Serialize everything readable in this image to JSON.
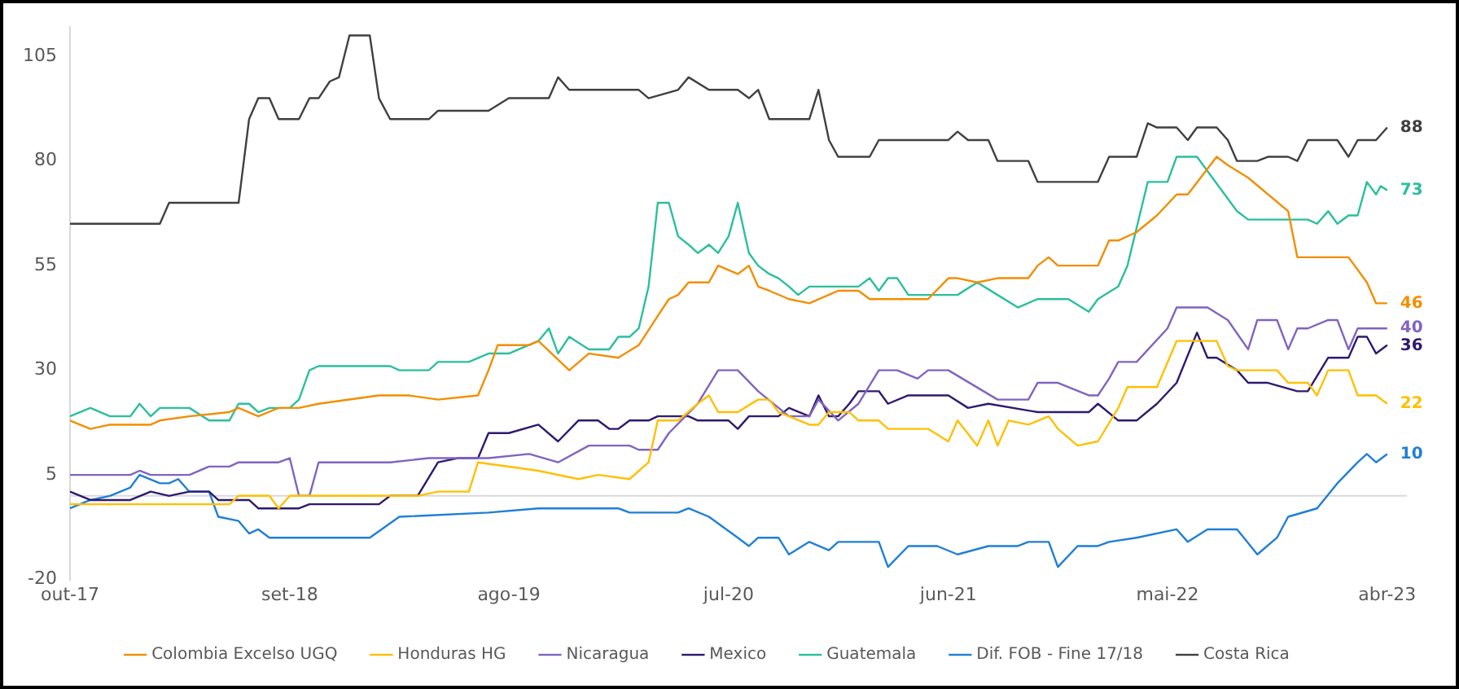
{
  "chart_data": {
    "type": "line",
    "xlim": [
      "2017-10",
      "2023-05"
    ],
    "xticks": [
      {
        "value": "2017-10",
        "label": "out-17"
      },
      {
        "value": "2018-09",
        "label": "set-18"
      },
      {
        "value": "2019-08",
        "label": "ago-19"
      },
      {
        "value": "2020-07",
        "label": "jul-20"
      },
      {
        "value": "2021-06",
        "label": "jun-21"
      },
      {
        "value": "2022-05",
        "label": "mai-22"
      },
      {
        "value": "2023-04",
        "label": "abr-23"
      }
    ],
    "ylim": [
      -20,
      112
    ],
    "yticks": [
      -20,
      5,
      30,
      55,
      80,
      105
    ],
    "grid": false,
    "legend": "bottom",
    "marker": "none",
    "line_style": "solid",
    "ref_lines": [
      {
        "axis": "y",
        "value": 0,
        "color": "#d9d9d9"
      }
    ],
    "series": [
      {
        "name": "Colombia Excelso UGQ",
        "color": "#f28e00",
        "x": [
          "2017-10-01",
          "2017-11-01",
          "2017-12-01",
          "2018-02-01",
          "2018-02-15",
          "2018-04-01",
          "2018-06-01",
          "2018-06-15",
          "2018-07-15",
          "2018-08-15",
          "2018-09-15",
          "2018-10-15",
          "2019-01-15",
          "2019-03-01",
          "2019-04-15",
          "2019-06-15",
          "2019-07-01",
          "2019-07-15",
          "2019-09-01",
          "2019-09-15",
          "2019-11-01",
          "2019-12-01",
          "2020-01-15",
          "2020-02-15",
          "2020-03-15",
          "2020-04-01",
          "2020-04-15",
          "2020-05-01",
          "2020-06-01",
          "2020-06-15",
          "2020-07-15",
          "2020-08-01",
          "2020-08-15",
          "2020-09-01",
          "2020-10-01",
          "2020-11-01",
          "2020-12-15",
          "2021-01-15",
          "2021-02-01",
          "2021-05-01",
          "2021-06-01",
          "2021-06-15",
          "2021-07-15",
          "2021-08-15",
          "2021-10-01",
          "2021-10-15",
          "2021-11-01",
          "2021-11-15",
          "2022-01-15",
          "2022-02-01",
          "2022-02-15",
          "2022-03-15",
          "2022-04-15",
          "2022-05-15",
          "2022-06-01",
          "2022-07-15",
          "2022-08-01",
          "2022-09-01",
          "2022-11-01",
          "2022-11-15",
          "2023-02-01",
          "2023-03-01",
          "2023-03-15",
          "2023-04-01"
        ],
        "values": [
          18,
          16,
          17,
          17,
          18,
          19,
          20,
          21,
          19,
          21,
          21,
          22,
          24,
          24,
          23,
          24,
          30,
          36,
          36,
          37,
          30,
          34,
          33,
          36,
          43,
          47,
          48,
          51,
          51,
          55,
          53,
          55,
          50,
          49,
          47,
          46,
          49,
          49,
          47,
          47,
          52,
          52,
          51,
          52,
          52,
          55,
          57,
          55,
          55,
          61,
          61,
          63,
          67,
          72,
          72,
          81,
          79,
          76,
          68,
          57,
          57,
          51,
          46,
          46
        ],
        "value_labels": [
          null,
          null,
          null,
          null,
          null,
          null,
          null,
          null,
          null,
          null,
          null,
          null,
          null,
          null,
          null,
          null,
          null,
          null,
          null,
          null,
          null,
          null,
          null,
          null,
          null,
          null,
          null,
          null,
          null,
          null,
          null,
          null,
          null,
          null,
          null,
          null,
          null,
          null,
          null,
          null,
          null,
          null,
          null,
          null,
          null,
          null,
          null,
          null,
          null,
          null,
          null,
          null,
          null,
          null,
          null,
          null,
          null,
          null,
          null,
          null,
          null,
          null,
          null,
          "46"
        ]
      },
      {
        "name": "Honduras HG",
        "color": "#ffc000",
        "x": [
          "2017-10-01",
          "2018-06-01",
          "2018-06-15",
          "2018-08-01",
          "2018-08-15",
          "2018-09-01",
          "2019-03-15",
          "2019-04-15",
          "2019-06-01",
          "2019-06-15",
          "2019-09-15",
          "2019-11-15",
          "2019-12-15",
          "2020-02-01",
          "2020-03-01",
          "2020-03-15",
          "2020-04-15",
          "2020-05-15",
          "2020-06-01",
          "2020-06-15",
          "2020-07-15",
          "2020-08-15",
          "2020-09-01",
          "2020-09-15",
          "2020-11-01",
          "2020-11-15",
          "2020-12-01",
          "2021-01-01",
          "2021-01-15",
          "2021-02-15",
          "2021-03-01",
          "2021-05-01",
          "2021-06-01",
          "2021-06-15",
          "2021-07-15",
          "2021-08-01",
          "2021-08-15",
          "2021-09-01",
          "2021-10-01",
          "2021-11-01",
          "2021-11-15",
          "2021-12-15",
          "2022-01-15",
          "2022-02-15",
          "2022-03-01",
          "2022-04-15",
          "2022-05-15",
          "2022-07-15",
          "2022-08-01",
          "2022-08-15",
          "2022-10-15",
          "2022-11-01",
          "2022-12-01",
          "2022-12-15",
          "2023-01-01",
          "2023-02-01",
          "2023-02-15",
          "2023-03-15",
          "2023-04-01"
        ],
        "values": [
          -2,
          -2,
          0,
          0,
          -3,
          0,
          0,
          1,
          1,
          8,
          6,
          4,
          5,
          4,
          8,
          18,
          18,
          22,
          24,
          20,
          20,
          23,
          23,
          20,
          17,
          17,
          20,
          20,
          18,
          18,
          16,
          16,
          13,
          18,
          12,
          18,
          12,
          18,
          17,
          19,
          16,
          12,
          13,
          21,
          26,
          26,
          37,
          37,
          31,
          30,
          30,
          27,
          27,
          24,
          30,
          30,
          24,
          24,
          22
        ],
        "value_labels": [
          null,
          null,
          null,
          null,
          null,
          null,
          null,
          null,
          null,
          null,
          null,
          null,
          null,
          null,
          null,
          null,
          null,
          null,
          null,
          null,
          null,
          null,
          null,
          null,
          null,
          null,
          null,
          null,
          null,
          null,
          null,
          null,
          null,
          null,
          null,
          null,
          null,
          null,
          null,
          null,
          null,
          null,
          null,
          null,
          null,
          null,
          null,
          null,
          null,
          null,
          null,
          null,
          null,
          null,
          null,
          null,
          null,
          null,
          "22"
        ]
      },
      {
        "name": "Nicaragua",
        "color": "#8064c0",
        "x": [
          "2017-10-01",
          "2018-01-01",
          "2018-01-15",
          "2018-02-01",
          "2018-04-01",
          "2018-05-01",
          "2018-06-01",
          "2018-06-15",
          "2018-08-15",
          "2018-09-01",
          "2018-09-15",
          "2018-10-01",
          "2018-10-15",
          "2019-02-01",
          "2019-04-01",
          "2019-07-01",
          "2019-09-01",
          "2019-10-15",
          "2019-12-01",
          "2020-02-01",
          "2020-02-15",
          "2020-03-15",
          "2020-04-01",
          "2020-05-15",
          "2020-06-15",
          "2020-07-15",
          "2020-08-15",
          "2020-10-01",
          "2020-11-01",
          "2020-11-15",
          "2020-12-15",
          "2021-01-15",
          "2021-02-15",
          "2021-03-15",
          "2021-04-15",
          "2021-05-01",
          "2021-06-01",
          "2021-08-15",
          "2021-10-01",
          "2021-10-15",
          "2021-11-15",
          "2022-01-01",
          "2022-01-15",
          "2022-02-01",
          "2022-02-15",
          "2022-03-15",
          "2022-05-01",
          "2022-05-15",
          "2022-07-01",
          "2022-08-01",
          "2022-09-01",
          "2022-09-15",
          "2022-10-15",
          "2022-11-01",
          "2022-11-15",
          "2022-12-01",
          "2023-01-01",
          "2023-01-15",
          "2023-02-01",
          "2023-02-15",
          "2023-04-01"
        ],
        "values": [
          5,
          5,
          6,
          5,
          5,
          7,
          7,
          8,
          8,
          9,
          0,
          0,
          8,
          8,
          9,
          9,
          10,
          8,
          12,
          12,
          11,
          11,
          15,
          22,
          30,
          30,
          25,
          19,
          19,
          23,
          18,
          22,
          30,
          30,
          28,
          30,
          30,
          23,
          23,
          27,
          27,
          24,
          24,
          28,
          32,
          32,
          40,
          45,
          45,
          42,
          35,
          42,
          42,
          35,
          40,
          40,
          42,
          42,
          35,
          40,
          40
        ],
        "value_labels": [
          null,
          null,
          null,
          null,
          null,
          null,
          null,
          null,
          null,
          null,
          null,
          null,
          null,
          null,
          null,
          null,
          null,
          null,
          null,
          null,
          null,
          null,
          null,
          null,
          null,
          null,
          null,
          null,
          null,
          null,
          null,
          null,
          null,
          null,
          null,
          null,
          null,
          null,
          null,
          null,
          null,
          null,
          null,
          null,
          null,
          null,
          null,
          null,
          null,
          null,
          null,
          null,
          null,
          null,
          null,
          null,
          null,
          null,
          null,
          null,
          "40"
        ]
      },
      {
        "name": "Mexico",
        "color": "#2e1a6e",
        "x": [
          "2017-10-01",
          "2017-11-01",
          "2018-01-01",
          "2018-02-01",
          "2018-03-01",
          "2018-04-01",
          "2018-05-01",
          "2018-05-15",
          "2018-07-01",
          "2018-07-15",
          "2018-09-15",
          "2018-10-01",
          "2019-01-15",
          "2019-02-01",
          "2019-03-15",
          "2019-04-15",
          "2019-05-15",
          "2019-06-15",
          "2019-07-01",
          "2019-08-01",
          "2019-09-15",
          "2019-10-15",
          "2019-11-15",
          "2019-12-15",
          "2020-01-01",
          "2020-01-15",
          "2020-02-01",
          "2020-03-01",
          "2020-03-15",
          "2020-05-01",
          "2020-05-15",
          "2020-07-01",
          "2020-07-15",
          "2020-08-01",
          "2020-09-15",
          "2020-10-01",
          "2020-11-01",
          "2020-11-15",
          "2020-12-01",
          "2020-12-15",
          "2021-01-01",
          "2021-01-15",
          "2021-02-15",
          "2021-03-01",
          "2021-04-01",
          "2021-06-01",
          "2021-07-01",
          "2021-08-01",
          "2021-10-15",
          "2021-11-15",
          "2022-01-01",
          "2022-01-15",
          "2022-02-15",
          "2022-03-15",
          "2022-04-15",
          "2022-05-15",
          "2022-06-15",
          "2022-07-01",
          "2022-07-15",
          "2022-08-15",
          "2022-09-01",
          "2022-10-01",
          "2022-11-15",
          "2022-12-01",
          "2023-01-01",
          "2023-02-01",
          "2023-02-15",
          "2023-03-01",
          "2023-03-15",
          "2023-04-01"
        ],
        "values": [
          1,
          -1,
          -1,
          1,
          0,
          1,
          1,
          -1,
          -1,
          -3,
          -3,
          -2,
          -2,
          0,
          0,
          8,
          9,
          9,
          15,
          15,
          17,
          13,
          18,
          18,
          16,
          16,
          18,
          18,
          19,
          19,
          18,
          18,
          16,
          19,
          19,
          21,
          19,
          24,
          19,
          19,
          22,
          25,
          25,
          22,
          24,
          24,
          21,
          22,
          20,
          20,
          20,
          22,
          18,
          18,
          22,
          27,
          39,
          33,
          33,
          30,
          27,
          27,
          25,
          25,
          33,
          33,
          38,
          38,
          34,
          36
        ],
        "value_labels": [
          null,
          null,
          null,
          null,
          null,
          null,
          null,
          null,
          null,
          null,
          null,
          null,
          null,
          null,
          null,
          null,
          null,
          null,
          null,
          null,
          null,
          null,
          null,
          null,
          null,
          null,
          null,
          null,
          null,
          null,
          null,
          null,
          null,
          null,
          null,
          null,
          null,
          null,
          null,
          null,
          null,
          null,
          null,
          null,
          null,
          null,
          null,
          null,
          null,
          null,
          null,
          null,
          null,
          null,
          null,
          null,
          null,
          null,
          null,
          null,
          null,
          null,
          null,
          null,
          null,
          null,
          null,
          null,
          null,
          "36"
        ]
      },
      {
        "name": "Guatemala",
        "color": "#2bbf9c",
        "x": [
          "2017-10-01",
          "2017-11-01",
          "2017-12-01",
          "2018-01-01",
          "2018-01-15",
          "2018-02-01",
          "2018-02-15",
          "2018-04-01",
          "2018-05-01",
          "2018-06-01",
          "2018-06-15",
          "2018-07-01",
          "2018-07-15",
          "2018-08-01",
          "2018-09-01",
          "2018-09-15",
          "2018-10-01",
          "2018-10-15",
          "2019-02-01",
          "2019-02-15",
          "2019-04-01",
          "2019-04-15",
          "2019-06-01",
          "2019-07-01",
          "2019-08-01",
          "2019-09-15",
          "2019-10-01",
          "2019-10-15",
          "2019-11-01",
          "2019-12-01",
          "2020-01-01",
          "2020-01-15",
          "2020-02-01",
          "2020-02-15",
          "2020-03-01",
          "2020-03-15",
          "2020-04-01",
          "2020-04-15",
          "2020-05-01",
          "2020-05-15",
          "2020-06-01",
          "2020-06-15",
          "2020-07-01",
          "2020-07-15",
          "2020-08-01",
          "2020-08-15",
          "2020-09-01",
          "2020-09-15",
          "2020-10-01",
          "2020-10-15",
          "2020-11-01",
          "2021-01-15",
          "2021-02-01",
          "2021-02-15",
          "2021-03-01",
          "2021-03-15",
          "2021-04-01",
          "2021-06-15",
          "2021-07-15",
          "2021-08-15",
          "2021-09-15",
          "2021-10-15",
          "2021-12-01",
          "2022-01-01",
          "2022-01-15",
          "2022-02-15",
          "2022-03-01",
          "2022-04-01",
          "2022-05-01",
          "2022-05-15",
          "2022-06-15",
          "2022-08-15",
          "2022-09-01",
          "2022-12-01",
          "2022-12-15",
          "2023-01-01",
          "2023-01-15",
          "2023-02-01",
          "2023-02-15",
          "2023-03-01",
          "2023-03-15",
          "2023-03-22",
          "2023-04-01"
        ],
        "values": [
          19,
          21,
          19,
          19,
          22,
          19,
          21,
          21,
          18,
          18,
          22,
          22,
          20,
          21,
          21,
          23,
          30,
          31,
          31,
          30,
          30,
          32,
          32,
          34,
          34,
          37,
          40,
          34,
          38,
          35,
          35,
          38,
          38,
          40,
          50,
          70,
          70,
          62,
          60,
          58,
          60,
          58,
          62,
          70,
          58,
          55,
          53,
          52,
          50,
          48,
          50,
          50,
          52,
          49,
          52,
          52,
          48,
          48,
          51,
          48,
          45,
          47,
          47,
          44,
          47,
          50,
          55,
          75,
          75,
          81,
          81,
          68,
          66,
          66,
          65,
          68,
          65,
          67,
          67,
          75,
          72,
          74,
          73
        ],
        "value_labels": [
          null,
          null,
          null,
          null,
          null,
          null,
          null,
          null,
          null,
          null,
          null,
          null,
          null,
          null,
          null,
          null,
          null,
          null,
          null,
          null,
          null,
          null,
          null,
          null,
          null,
          null,
          null,
          null,
          null,
          null,
          null,
          null,
          null,
          null,
          null,
          null,
          null,
          null,
          null,
          null,
          null,
          null,
          null,
          null,
          null,
          null,
          null,
          null,
          null,
          null,
          null,
          null,
          null,
          null,
          null,
          null,
          null,
          null,
          null,
          null,
          null,
          null,
          null,
          null,
          null,
          null,
          null,
          null,
          null,
          null,
          null,
          null,
          null,
          null,
          null,
          null,
          null,
          null,
          null,
          null,
          null,
          null,
          "73"
        ]
      },
      {
        "name": "Dif. FOB - Fine 17/18",
        "color": "#1f7fd6",
        "x": [
          "2017-10-01",
          "2017-11-01",
          "2017-12-01",
          "2018-01-01",
          "2018-01-15",
          "2018-02-15",
          "2018-03-01",
          "2018-03-15",
          "2018-04-01",
          "2018-05-01",
          "2018-05-15",
          "2018-06-15",
          "2018-07-01",
          "2018-07-15",
          "2018-08-01",
          "2019-01-01",
          "2019-02-15",
          "2019-07-01",
          "2019-09-15",
          "2020-01-15",
          "2020-02-01",
          "2020-04-15",
          "2020-05-01",
          "2020-06-01",
          "2020-07-15",
          "2020-08-01",
          "2020-08-15",
          "2020-09-15",
          "2020-10-01",
          "2020-11-01",
          "2020-12-01",
          "2020-12-15",
          "2021-02-15",
          "2021-03-01",
          "2021-04-01",
          "2021-05-15",
          "2021-06-15",
          "2021-08-01",
          "2021-09-15",
          "2021-10-01",
          "2021-11-01",
          "2021-11-15",
          "2021-12-15",
          "2022-01-15",
          "2022-02-01",
          "2022-03-15",
          "2022-05-15",
          "2022-06-01",
          "2022-07-01",
          "2022-08-15",
          "2022-09-15",
          "2022-10-15",
          "2022-11-01",
          "2022-12-15",
          "2023-01-15",
          "2023-02-15",
          "2023-03-01",
          "2023-03-15",
          "2023-04-01"
        ],
        "values": [
          -3,
          -1,
          0,
          2,
          5,
          3,
          3,
          4,
          1,
          1,
          -5,
          -6,
          -9,
          -8,
          -10,
          -10,
          -5,
          -4,
          -3,
          -3,
          -4,
          -4,
          -3,
          -5,
          -10,
          -12,
          -10,
          -10,
          -14,
          -11,
          -13,
          -11,
          -11,
          -17,
          -12,
          -12,
          -14,
          -12,
          -12,
          -11,
          -11,
          -17,
          -12,
          -12,
          -11,
          -10,
          -8,
          -11,
          -8,
          -8,
          -14,
          -10,
          -5,
          -3,
          3,
          8,
          10,
          8,
          10
        ],
        "value_labels": [
          null,
          null,
          null,
          null,
          null,
          null,
          null,
          null,
          null,
          null,
          null,
          null,
          null,
          null,
          null,
          null,
          null,
          null,
          null,
          null,
          null,
          null,
          null,
          null,
          null,
          null,
          null,
          null,
          null,
          null,
          null,
          null,
          null,
          null,
          null,
          null,
          null,
          null,
          null,
          null,
          null,
          null,
          null,
          null,
          null,
          null,
          null,
          null,
          null,
          null,
          null,
          null,
          null,
          null,
          null,
          null,
          null,
          null,
          "10"
        ]
      },
      {
        "name": "Costa Rica",
        "color": "#404040",
        "x": [
          "2017-10-01",
          "2018-02-15",
          "2018-03-01",
          "2018-06-15",
          "2018-07-01",
          "2018-07-15",
          "2018-08-01",
          "2018-08-15",
          "2018-09-15",
          "2018-10-01",
          "2018-10-15",
          "2018-11-01",
          "2018-11-15",
          "2018-12-01",
          "2019-01-01",
          "2019-01-15",
          "2019-02-01",
          "2019-04-01",
          "2019-04-15",
          "2019-07-01",
          "2019-08-01",
          "2019-10-01",
          "2019-10-15",
          "2019-11-01",
          "2020-02-15",
          "2020-03-01",
          "2020-04-15",
          "2020-05-01",
          "2020-06-01",
          "2020-07-15",
          "2020-08-01",
          "2020-08-15",
          "2020-09-01",
          "2020-11-01",
          "2020-11-15",
          "2020-12-01",
          "2020-12-15",
          "2021-02-01",
          "2021-02-15",
          "2021-06-01",
          "2021-06-15",
          "2021-07-01",
          "2021-08-01",
          "2021-08-15",
          "2021-10-01",
          "2021-10-15",
          "2022-01-15",
          "2022-02-01",
          "2022-03-15",
          "2022-04-01",
          "2022-04-15",
          "2022-05-15",
          "2022-06-01",
          "2022-06-15",
          "2022-07-15",
          "2022-08-01",
          "2022-08-15",
          "2022-09-15",
          "2022-10-01",
          "2022-11-01",
          "2022-11-15",
          "2022-12-01",
          "2023-01-15",
          "2023-02-01",
          "2023-02-15",
          "2023-03-15",
          "2023-04-01"
        ],
        "values": [
          65,
          65,
          70,
          70,
          90,
          95,
          95,
          90,
          90,
          95,
          95,
          99,
          100,
          110,
          110,
          95,
          90,
          90,
          92,
          92,
          95,
          95,
          100,
          97,
          97,
          95,
          97,
          100,
          97,
          97,
          95,
          97,
          90,
          90,
          97,
          85,
          81,
          81,
          85,
          85,
          87,
          85,
          85,
          80,
          80,
          75,
          75,
          81,
          81,
          89,
          88,
          88,
          85,
          88,
          88,
          85,
          80,
          80,
          81,
          81,
          80,
          85,
          85,
          81,
          85,
          85,
          88
        ],
        "value_labels": [
          null,
          null,
          null,
          null,
          null,
          null,
          null,
          null,
          null,
          null,
          null,
          null,
          null,
          null,
          null,
          null,
          null,
          null,
          null,
          null,
          null,
          null,
          null,
          null,
          null,
          null,
          null,
          null,
          null,
          null,
          null,
          null,
          null,
          null,
          null,
          null,
          null,
          null,
          null,
          null,
          null,
          null,
          null,
          null,
          null,
          null,
          null,
          null,
          null,
          null,
          null,
          null,
          null,
          null,
          null,
          null,
          null,
          null,
          null,
          null,
          null,
          null,
          null,
          null,
          null,
          null,
          "88"
        ]
      }
    ]
  }
}
